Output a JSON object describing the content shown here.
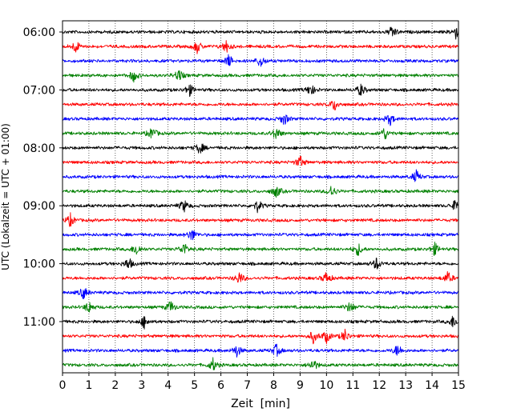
{
  "chart_data": {
    "type": "line",
    "subtype": "helicorder",
    "xlabel": "Zeit  [min]",
    "ylabel": "UTC (Lokalzeit = UTC + 01:00)",
    "xlim": [
      0,
      15
    ],
    "x_ticks": [
      "0",
      "1",
      "2",
      "3",
      "4",
      "5",
      "6",
      "7",
      "8",
      "9",
      "10",
      "11",
      "12",
      "13",
      "14",
      "15"
    ],
    "y_tick_labels": [
      "06:00",
      "07:00",
      "08:00",
      "09:00",
      "10:00",
      "11:00"
    ],
    "grid": "vertical dotted at each minute",
    "trace_colors": [
      "#000000",
      "#ff0000",
      "#0000ff",
      "#008000"
    ],
    "trace_interval_min": 15,
    "traces": [
      {
        "start": "06:00",
        "color": "#000000",
        "events_min": [
          12.5,
          14.9
        ]
      },
      {
        "start": "06:15",
        "color": "#ff0000",
        "events_min": [
          0.5,
          5.1,
          6.2
        ]
      },
      {
        "start": "06:30",
        "color": "#0000ff",
        "events_min": [
          6.3,
          7.5
        ]
      },
      {
        "start": "06:45",
        "color": "#008000",
        "events_min": [
          4.4,
          2.7
        ]
      },
      {
        "start": "07:00",
        "color": "#000000",
        "events_min": [
          4.8,
          9.4,
          11.3
        ]
      },
      {
        "start": "07:15",
        "color": "#ff0000",
        "events_min": [
          10.3
        ]
      },
      {
        "start": "07:30",
        "color": "#0000ff",
        "events_min": [
          8.4,
          12.4
        ]
      },
      {
        "start": "07:45",
        "color": "#008000",
        "events_min": [
          3.4,
          8.1,
          12.2
        ]
      },
      {
        "start": "08:00",
        "color": "#000000",
        "events_min": [
          5.2
        ]
      },
      {
        "start": "08:15",
        "color": "#ff0000",
        "events_min": [
          9.0
        ]
      },
      {
        "start": "08:30",
        "color": "#0000ff",
        "events_min": [
          13.4
        ]
      },
      {
        "start": "08:45",
        "color": "#008000",
        "events_min": [
          8.1,
          10.2
        ]
      },
      {
        "start": "09:00",
        "color": "#000000",
        "events_min": [
          4.6,
          7.4,
          14.9
        ]
      },
      {
        "start": "09:15",
        "color": "#ff0000",
        "events_min": [
          0.3
        ]
      },
      {
        "start": "09:30",
        "color": "#0000ff",
        "events_min": [
          4.9
        ]
      },
      {
        "start": "09:45",
        "color": "#008000",
        "events_min": [
          2.8,
          4.6,
          11.2,
          14.1
        ]
      },
      {
        "start": "10:00",
        "color": "#000000",
        "events_min": [
          2.5,
          11.9
        ]
      },
      {
        "start": "10:15",
        "color": "#ff0000",
        "events_min": [
          6.7,
          10.0,
          14.6
        ]
      },
      {
        "start": "10:30",
        "color": "#0000ff",
        "events_min": [
          0.8
        ]
      },
      {
        "start": "10:45",
        "color": "#008000",
        "events_min": [
          1.0,
          4.1,
          10.9
        ]
      },
      {
        "start": "11:00",
        "color": "#000000",
        "events_min": [
          3.1,
          14.8
        ]
      },
      {
        "start": "11:15",
        "color": "#ff0000",
        "events_min": [
          9.5,
          10.0,
          10.7
        ]
      },
      {
        "start": "11:30",
        "color": "#0000ff",
        "events_min": [
          6.6,
          8.1,
          12.7
        ]
      },
      {
        "start": "11:45",
        "color": "#008000",
        "events_min": [
          5.7,
          9.5
        ]
      }
    ]
  }
}
